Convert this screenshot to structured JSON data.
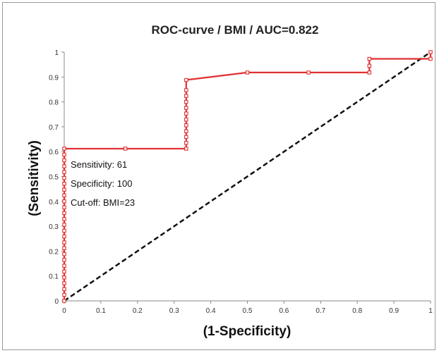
{
  "chart_data": {
    "type": "line",
    "title": "ROC-curve / BMI / AUC=0.822",
    "xlabel": "(1-Specificity)",
    "ylabel": "(Sensitivity)",
    "xlim": [
      0,
      1
    ],
    "ylim": [
      0,
      1
    ],
    "x_ticks": [
      "0",
      "0.1",
      "0.2",
      "0.3",
      "0.4",
      "0.5",
      "0.6",
      "0.7",
      "0.8",
      "0.9",
      "1"
    ],
    "y_ticks": [
      "0",
      "0.1",
      "0.2",
      "0.3",
      "0.4",
      "0.5",
      "0.6",
      "0.7",
      "0.8",
      "0.9",
      "1"
    ],
    "grid": false,
    "legend": "none",
    "colors": {
      "roc": "#e03030",
      "reference": "#111111"
    },
    "series": [
      {
        "style": "solid-with-square-markers",
        "x": [
          0,
          0,
          0,
          0,
          0,
          0,
          0,
          0,
          0,
          0,
          0,
          0,
          0,
          0,
          0,
          0,
          0,
          0,
          0,
          0,
          0,
          0,
          0,
          0,
          0,
          0,
          0,
          0.167,
          0.333,
          0.333,
          0.333,
          0.333,
          0.333,
          0.333,
          0.333,
          0.333,
          0.333,
          0.333,
          0.333,
          0.333,
          0.5,
          0.667,
          0.833,
          0.833,
          0.833,
          1,
          1
        ],
        "y": [
          0,
          0.024,
          0.047,
          0.071,
          0.094,
          0.118,
          0.141,
          0.165,
          0.188,
          0.212,
          0.235,
          0.259,
          0.282,
          0.306,
          0.329,
          0.353,
          0.376,
          0.4,
          0.424,
          0.447,
          0.471,
          0.494,
          0.518,
          0.541,
          0.565,
          0.588,
          0.612,
          0.612,
          0.612,
          0.635,
          0.659,
          0.682,
          0.706,
          0.729,
          0.753,
          0.776,
          0.8,
          0.824,
          0.847,
          0.888,
          0.918,
          0.918,
          0.918,
          0.945,
          0.973,
          0.973,
          1
        ]
      },
      {
        "style": "dashed-reference",
        "x": [
          0,
          1
        ],
        "y": [
          0,
          1
        ]
      }
    ],
    "annotations": [
      "Sensitivity: 61",
      "Specificity: 100",
      "Cut-off: BMI=23"
    ]
  }
}
